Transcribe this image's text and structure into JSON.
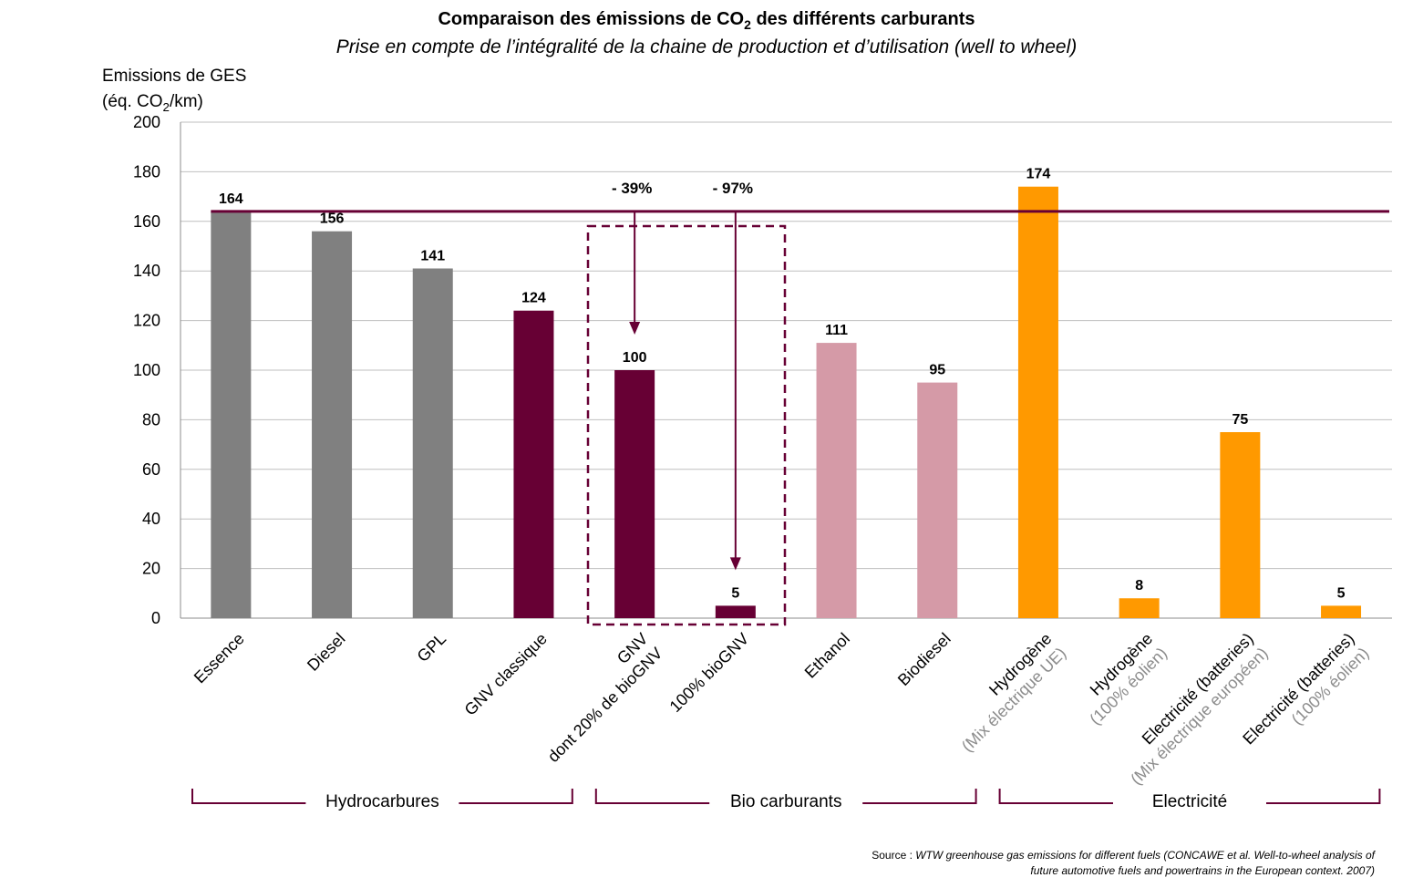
{
  "chart_data": {
    "type": "bar",
    "title_main": "Comparaison  des émissions de CO",
    "title_sub": "2",
    "title_rest": " des différents carburants",
    "subtitle": "Prise en compte de l’intégralité de la chaine de production et d’utilisation (well to wheel)",
    "ylabel_line1": "Emissions de GES",
    "ylabel_line2_a": "(éq. CO",
    "ylabel_line2_sub": "2",
    "ylabel_line2_b": "/km)",
    "ylim": [
      0,
      200
    ],
    "yticks": [
      0,
      20,
      40,
      60,
      80,
      100,
      120,
      140,
      160,
      180,
      200
    ],
    "grid": true,
    "categories": [
      {
        "label": "Essence",
        "sublabel": "",
        "value": 164,
        "color": "#808080"
      },
      {
        "label": "Diesel",
        "sublabel": "",
        "value": 156,
        "color": "#808080"
      },
      {
        "label": "GPL",
        "sublabel": "",
        "value": 141,
        "color": "#808080"
      },
      {
        "label": "GNV classique",
        "sublabel": "",
        "value": 124,
        "color": "#670034"
      },
      {
        "label": "GNV",
        "sublabel": "dont 20% de bioGNV",
        "value": 100,
        "color": "#670034"
      },
      {
        "label": "100% bioGNV",
        "sublabel": "",
        "value": 5,
        "color": "#670034"
      },
      {
        "label": "Ethanol",
        "sublabel": "",
        "value": 111,
        "color": "#d59aa7"
      },
      {
        "label": "Biodiesel",
        "sublabel": "",
        "value": 95,
        "color": "#d59aa7"
      },
      {
        "label": "Hydrogène",
        "sublabel": "(Mix électrique UE)",
        "value": 174,
        "color": "#ff9900"
      },
      {
        "label": "Hydrogène",
        "sublabel": "(100% éolien)",
        "value": 8,
        "color": "#ff9900"
      },
      {
        "label": "Electricité (batteries)",
        "sublabel": "(Mix électrique européen)",
        "value": 75,
        "color": "#ff9900"
      },
      {
        "label": "Electricité (batteries)",
        "sublabel": "(100% éolien)",
        "value": 5,
        "color": "#ff9900"
      }
    ],
    "reference_line": {
      "value": 164,
      "color": "#670034"
    },
    "annotations": [
      {
        "text": "- 39%",
        "category_index": 4
      },
      {
        "text": "- 97%",
        "category_index": 5
      }
    ],
    "groups": [
      {
        "label": "Hydrocarbures",
        "from": 0,
        "to": 3
      },
      {
        "label": "Bio carburants",
        "from": 4,
        "to": 7
      },
      {
        "label": "Electricité",
        "from": 8,
        "to": 11
      }
    ],
    "colors": {
      "accent": "#670034",
      "grid": "#bfbfbf",
      "sublabel": "#8c8c8c"
    }
  },
  "source": {
    "prefix": "Source : ",
    "line1": "WTW greenhouse gas emissions for different fuels (CONCAWE et al. Well-to-wheel analysis of",
    "line2": "future automotive fuels and powertrains in the European context. 2007)"
  }
}
